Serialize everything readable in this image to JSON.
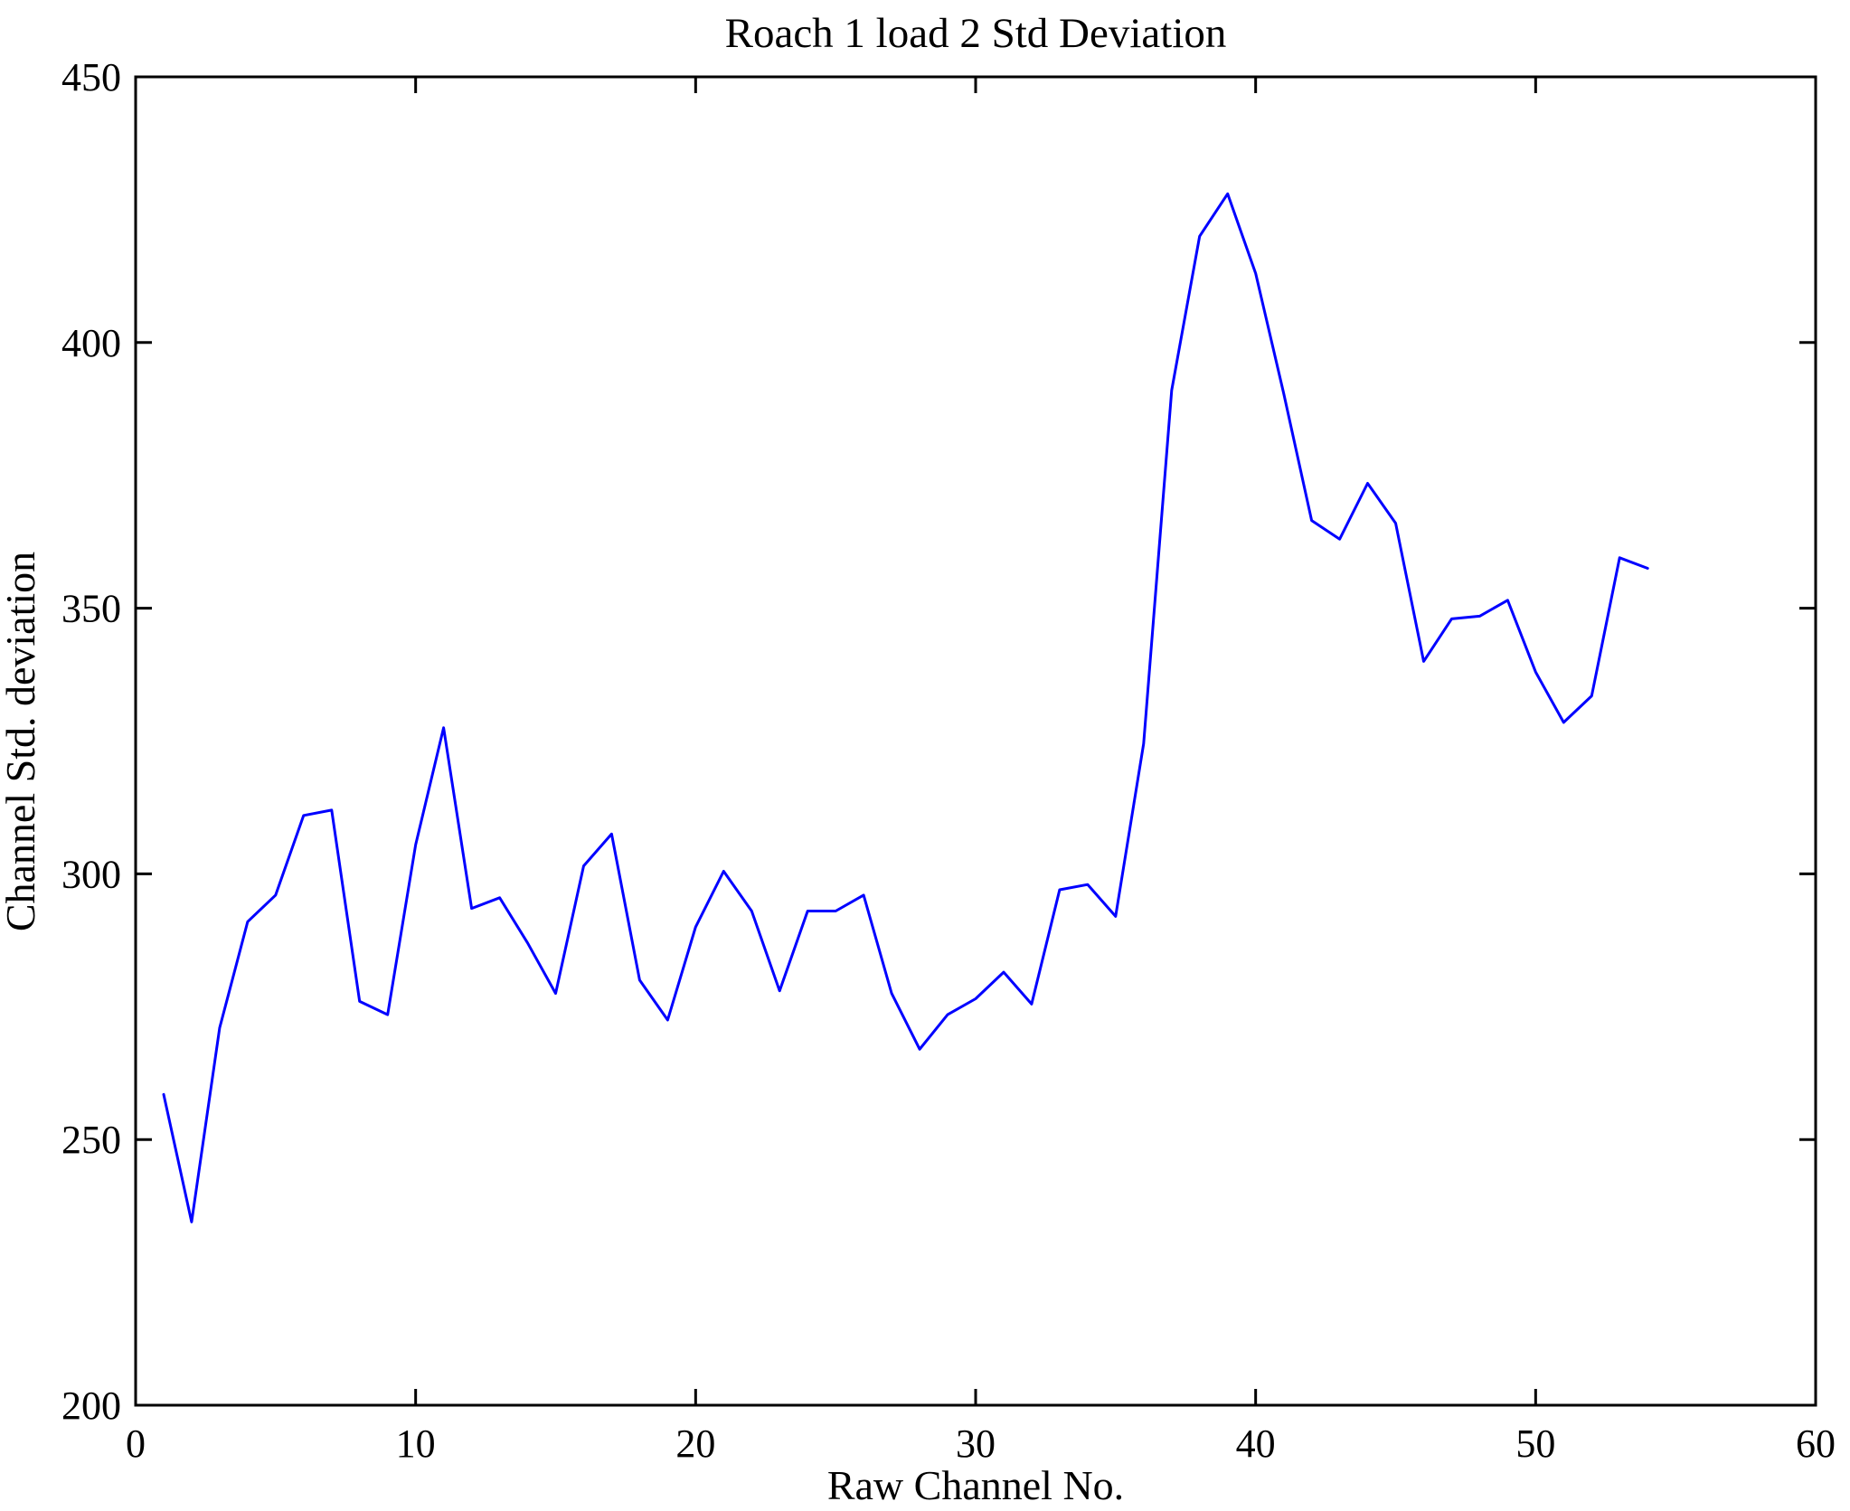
{
  "chart_data": {
    "type": "line",
    "title": "Roach 1 load 2 Std Deviation",
    "xlabel": "Raw Channel No.",
    "ylabel": "Channel Std. deviation",
    "xlim": [
      0,
      60
    ],
    "ylim": [
      200,
      450
    ],
    "xticks": [
      0,
      10,
      20,
      30,
      40,
      50,
      60
    ],
    "yticks": [
      200,
      250,
      300,
      350,
      400,
      450
    ],
    "grid": false,
    "legend_position": "none",
    "line_color": "#0000ff",
    "axis_color": "#000000",
    "background_color": "#ffffff",
    "series": [
      {
        "name": "Channel Std. deviation",
        "x": [
          1,
          2,
          3,
          4,
          5,
          6,
          7,
          8,
          9,
          10,
          11,
          12,
          13,
          14,
          15,
          16,
          17,
          18,
          19,
          20,
          21,
          22,
          23,
          24,
          25,
          26,
          27,
          28,
          29,
          30,
          31,
          32,
          33,
          34,
          35,
          36,
          37,
          38,
          39,
          40,
          41,
          42,
          43,
          44,
          45,
          46,
          47,
          48,
          49,
          50,
          51,
          52,
          53,
          54
        ],
        "y": [
          258.5,
          234.5,
          271,
          291,
          296,
          311,
          312,
          276,
          273.5,
          305.5,
          327.5,
          293.5,
          295.5,
          287,
          277.5,
          301.5,
          307.5,
          280,
          272.5,
          290,
          300.5,
          293,
          278,
          293,
          293,
          296,
          277.5,
          267,
          273.5,
          276.5,
          281.5,
          275.5,
          297,
          298,
          292,
          324.5,
          391,
          420,
          428,
          413,
          390.5,
          366.5,
          363,
          373.5,
          366,
          340,
          348,
          348.5,
          351.5,
          338,
          328.5,
          333.5,
          359.5,
          357.5
        ]
      }
    ]
  }
}
